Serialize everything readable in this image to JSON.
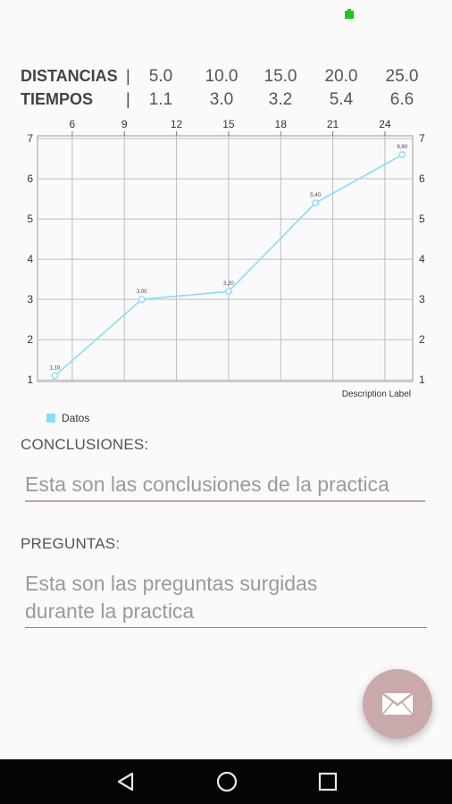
{
  "table": {
    "distances_label": "DISTANCIAS",
    "times_label": "TIEMPOS",
    "separator": "|",
    "distances": [
      "5.0",
      "10.0",
      "15.0",
      "20.0",
      "25.0"
    ],
    "times": [
      "1.1",
      "3.0",
      "3.2",
      "5.4",
      "6.6"
    ]
  },
  "chart_data": {
    "type": "line",
    "x": [
      5,
      10,
      15,
      20,
      25
    ],
    "series": [
      {
        "name": "Datos",
        "values": [
          1.1,
          3.0,
          3.2,
          5.4,
          6.6
        ],
        "point_labels": [
          "1,10",
          "3,00",
          "3,20",
          "5,40",
          "6,60"
        ],
        "color": "#87ddf7"
      }
    ],
    "x_ticks": [
      "6",
      "9",
      "12",
      "15",
      "18",
      "21",
      "24"
    ],
    "y_ticks": [
      "1",
      "2",
      "3",
      "4",
      "5",
      "6",
      "7"
    ],
    "xlim": [
      4,
      25.6
    ],
    "ylim": [
      0.96,
      7.07
    ],
    "x_axis_position": "top",
    "y_axis": "both sides",
    "grid": true,
    "description": "Description Label",
    "legend": "bottom-left"
  },
  "conclusions": {
    "label": "CONCLUSIONES:",
    "placeholder": "Esta son las conclusiones de la practica",
    "line_color": "#c9a0a2"
  },
  "questions": {
    "label": "PREGUNTAS:",
    "placeholder_lines": [
      "Esta son las preguntas surgidas",
      "durante la practica"
    ],
    "line_color": "#8a8a8a"
  },
  "fab": {
    "icon": "mail-icon",
    "color": "#c9a9ab"
  },
  "nav": {
    "back": "back-icon",
    "home": "home-icon",
    "recents": "recents-icon"
  }
}
